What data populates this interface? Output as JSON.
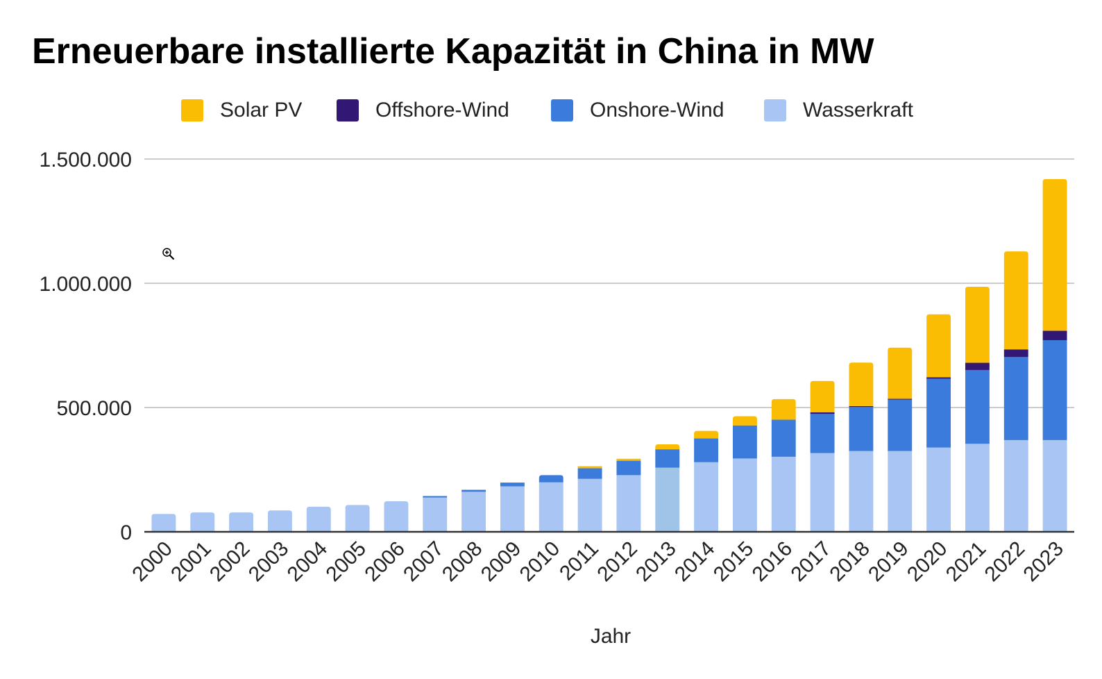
{
  "chart_data": {
    "type": "bar",
    "stacked": true,
    "title": "Erneuerbare installierte Kapazität in China in MW",
    "xlabel": "Jahr",
    "ylabel": "",
    "ylim": [
      0,
      1500000
    ],
    "yticks": [
      0,
      500000,
      1000000,
      1500000
    ],
    "ytick_labels": [
      "0",
      "500.000",
      "1.000.000",
      "1.500.000"
    ],
    "grid": true,
    "legend_position": "top",
    "categories": [
      "2000",
      "2001",
      "2002",
      "2003",
      "2004",
      "2005",
      "2006",
      "2007",
      "2008",
      "2009",
      "2010",
      "2011",
      "2012",
      "2013",
      "2014",
      "2015",
      "2016",
      "2017",
      "2018",
      "2019",
      "2020",
      "2021",
      "2022",
      "2023"
    ],
    "series": [
      {
        "name": "Wasserkraft",
        "color": "#a8c5f4",
        "values": [
          72000,
          78000,
          78000,
          86000,
          101000,
          108000,
          123000,
          138000,
          161000,
          183000,
          199000,
          213000,
          228000,
          258000,
          280000,
          295000,
          302000,
          317000,
          325000,
          325000,
          339000,
          354000,
          369000,
          369000
        ]
      },
      {
        "name": "Onshore-Wind",
        "color": "#3a7bdb",
        "values": [
          0,
          0,
          0,
          0,
          0,
          0,
          0,
          6000,
          8000,
          15000,
          29000,
          43000,
          58000,
          74000,
          96000,
          133000,
          149000,
          157000,
          177000,
          207000,
          277000,
          297000,
          334000,
          402000
        ]
      },
      {
        "name": "Offshore-Wind",
        "color": "#321874",
        "values": [
          0,
          0,
          0,
          0,
          0,
          0,
          0,
          0,
          0,
          0,
          0,
          0,
          0,
          0,
          0,
          0,
          0,
          7000,
          4000,
          3000,
          6000,
          29000,
          31000,
          38000
        ]
      },
      {
        "name": "Solar PV",
        "color": "#fbbc04",
        "values": [
          0,
          0,
          0,
          0,
          0,
          0,
          0,
          0,
          0,
          0,
          0,
          8000,
          8000,
          20000,
          30000,
          37000,
          83000,
          126000,
          175000,
          206000,
          253000,
          306000,
          394000,
          610000
        ]
      }
    ],
    "legend_order": [
      "Solar PV",
      "Offshore-Wind",
      "Onshore-Wind",
      "Wasserkraft"
    ],
    "highlighted_category": "2013",
    "highlight_color": "#a0c4e8"
  },
  "legend": [
    {
      "label": "Solar PV",
      "color": "#fbbc04"
    },
    {
      "label": "Offshore-Wind",
      "color": "#321874"
    },
    {
      "label": "Onshore-Wind",
      "color": "#3a7bdb"
    },
    {
      "label": "Wasserkraft",
      "color": "#a8c5f4"
    }
  ],
  "cursor": {
    "icon": "zoom-in-cursor-icon"
  }
}
